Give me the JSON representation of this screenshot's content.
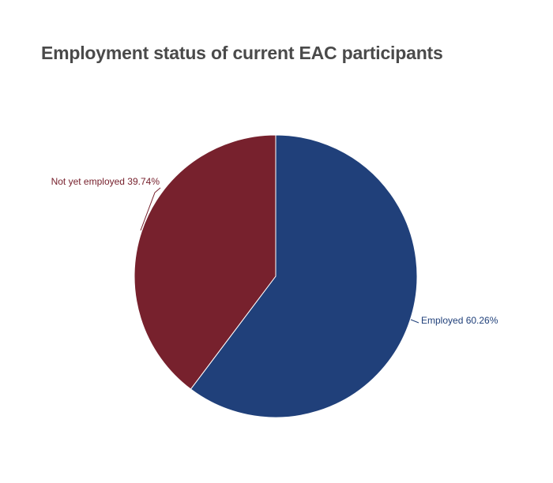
{
  "chart_data": {
    "type": "pie",
    "title": "Employment status of current EAC participants",
    "slices": [
      {
        "label": "Employed",
        "value": 60.26,
        "display": "Employed 60.26%",
        "color": "#20407a"
      },
      {
        "label": "Not yet employed",
        "value": 39.74,
        "display": "Not yet employed 39.74%",
        "color": "#77212d"
      }
    ],
    "start_angle_deg": 0,
    "direction": "clockwise",
    "legend": "none",
    "label_position": "outside-with-leader-lines"
  }
}
